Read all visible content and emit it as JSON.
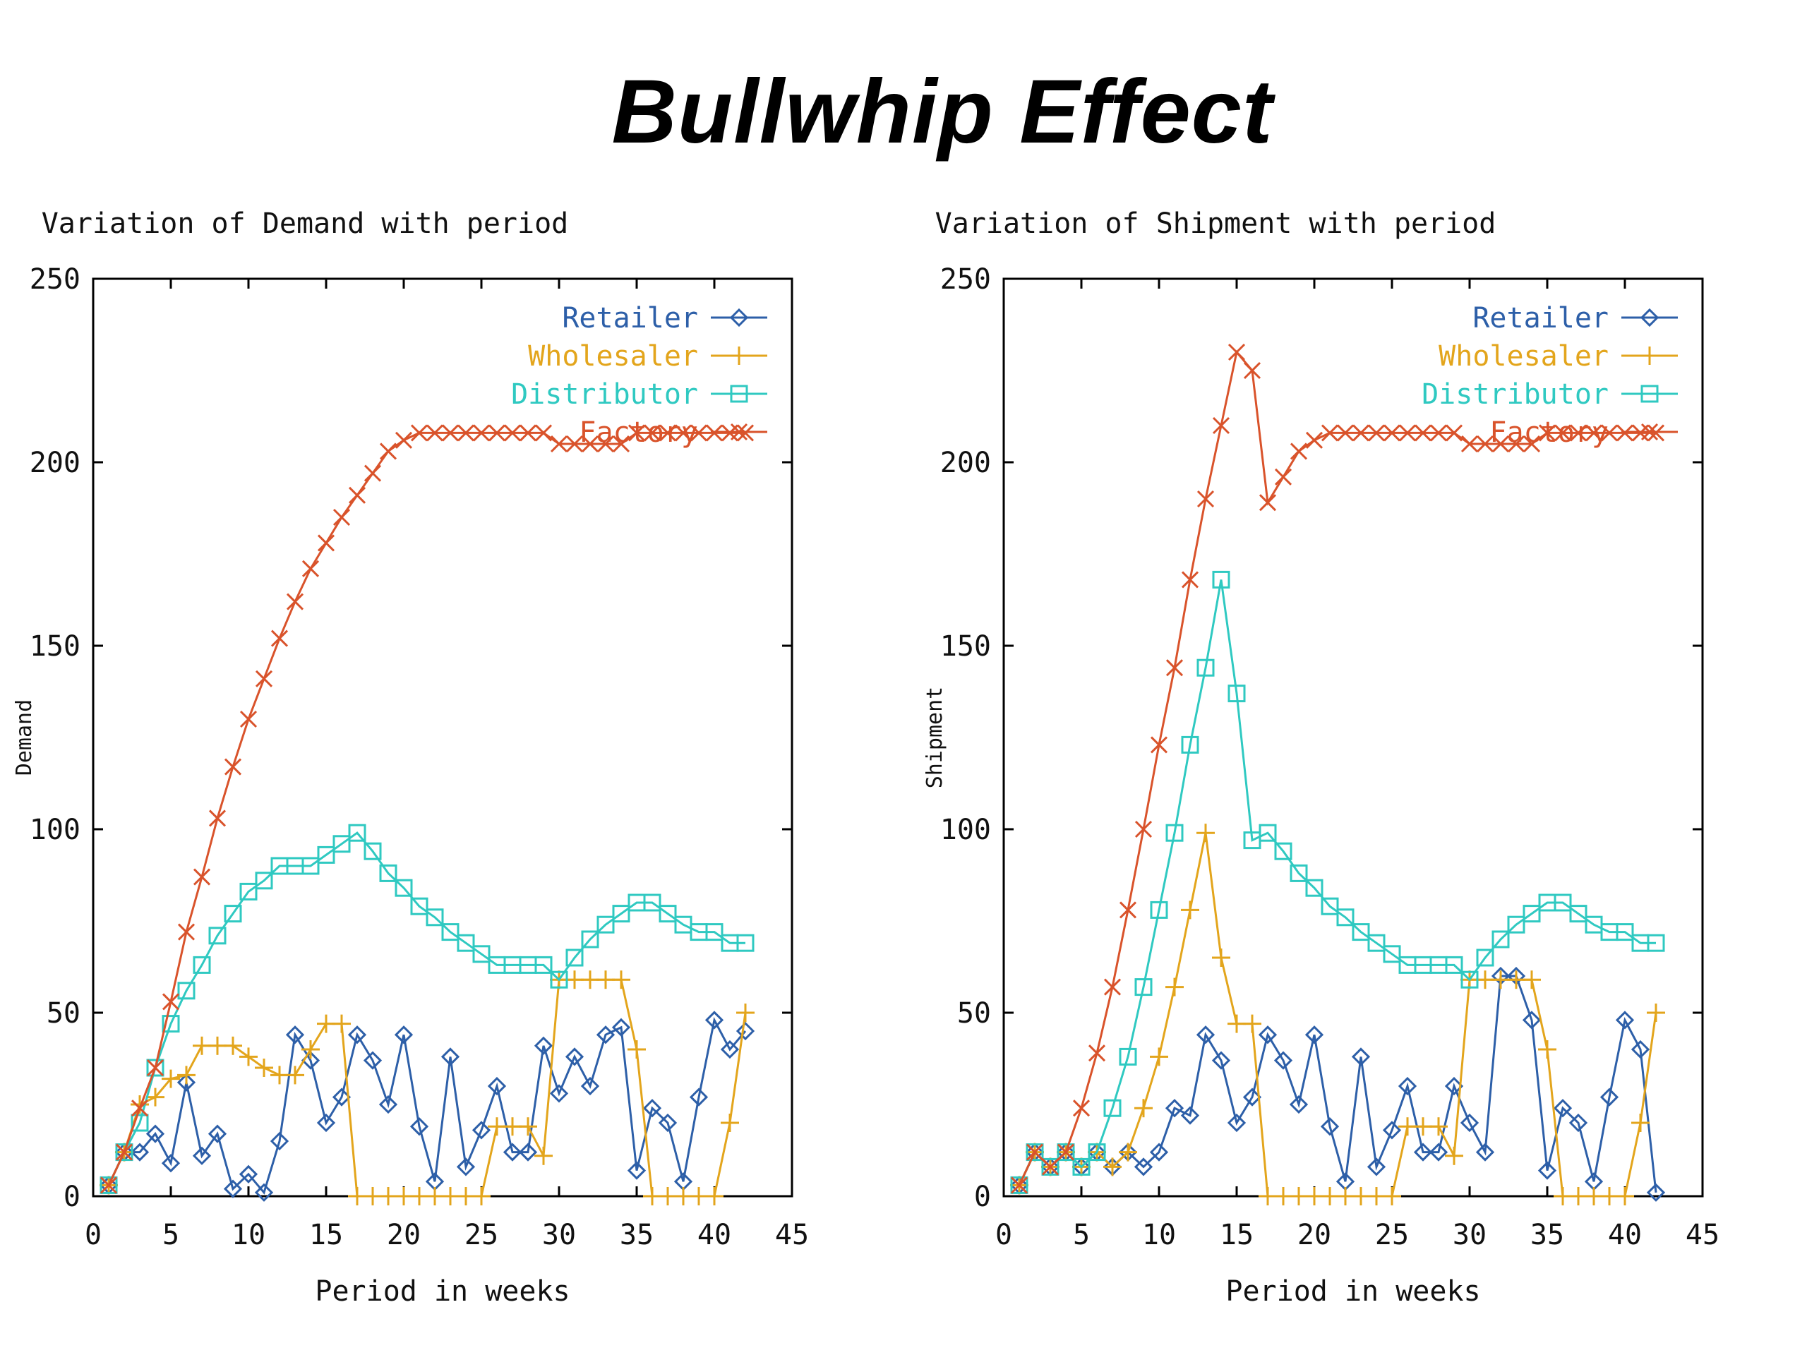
{
  "page_title": "Bullwhip Effect",
  "colors": {
    "Retailer": "#2d5fa8",
    "Wholesaler": "#e3a51c",
    "Distributor": "#2fc9c1",
    "Factory": "#d9532b"
  },
  "chart_data": [
    {
      "type": "line",
      "title": "Variation of Demand with period",
      "xlabel": "Period in weeks",
      "ylabel": "Demand",
      "xlim": [
        0,
        45
      ],
      "ylim": [
        0,
        250
      ],
      "xticks": [
        0,
        5,
        10,
        15,
        20,
        25,
        30,
        35,
        40,
        45
      ],
      "yticks": [
        0,
        50,
        100,
        150,
        200,
        250
      ],
      "legend_position": "top-right",
      "grid": false,
      "series": [
        {
          "name": "Retailer",
          "marker": "diamond",
          "x": [
            1,
            2,
            3,
            4,
            5,
            6,
            7,
            8,
            9,
            10,
            11,
            12,
            13,
            14,
            15,
            16,
            17,
            18,
            19,
            20,
            21,
            22,
            23,
            24,
            25,
            26,
            27,
            28,
            29,
            30,
            31,
            32,
            33,
            34,
            35,
            36,
            37,
            38,
            39,
            40,
            41,
            42
          ],
          "y": [
            3,
            12,
            12,
            17,
            9,
            31,
            11,
            17,
            2,
            6,
            1,
            15,
            44,
            37,
            20,
            27,
            44,
            37,
            25,
            44,
            19,
            4,
            38,
            8,
            18,
            30,
            12,
            12,
            41,
            28,
            38,
            30,
            44,
            46,
            7,
            24,
            20,
            4,
            27,
            48,
            40,
            45
          ]
        },
        {
          "name": "Wholesaler",
          "marker": "plus",
          "x": [
            1,
            2,
            3,
            4,
            5,
            6,
            7,
            8,
            9,
            10,
            11,
            12,
            13,
            14,
            15,
            16,
            17,
            18,
            19,
            20,
            21,
            22,
            23,
            24,
            25,
            26,
            27,
            28,
            29,
            30,
            31,
            32,
            33,
            34,
            35,
            36,
            37,
            38,
            39,
            40,
            41,
            42
          ],
          "y": [
            3,
            12,
            25,
            27,
            32,
            33,
            41,
            41,
            41,
            38,
            35,
            33,
            33,
            40,
            47,
            47,
            0,
            0,
            0,
            0,
            0,
            0,
            0,
            0,
            0,
            19,
            19,
            19,
            11,
            59,
            59,
            59,
            59,
            59,
            40,
            0,
            0,
            0,
            0,
            0,
            20,
            50
          ]
        },
        {
          "name": "Distributor",
          "marker": "square",
          "x": [
            1,
            2,
            3,
            4,
            5,
            6,
            7,
            8,
            9,
            10,
            11,
            12,
            13,
            14,
            15,
            16,
            17,
            18,
            19,
            20,
            21,
            22,
            23,
            24,
            25,
            26,
            27,
            28,
            29,
            30,
            31,
            32,
            33,
            34,
            35,
            36,
            37,
            38,
            39,
            40,
            41,
            42
          ],
          "y": [
            3,
            12,
            20,
            35,
            47,
            56,
            63,
            71,
            77,
            83,
            86,
            90,
            90,
            90,
            93,
            96,
            99,
            94,
            88,
            84,
            79,
            76,
            72,
            69,
            66,
            63,
            63,
            63,
            63,
            59,
            65,
            70,
            74,
            77,
            80,
            80,
            77,
            74,
            72,
            72,
            69,
            69
          ]
        },
        {
          "name": "Factory",
          "marker": "cross",
          "x": [
            1,
            2,
            3,
            4,
            5,
            6,
            7,
            8,
            9,
            10,
            11,
            12,
            13,
            14,
            15,
            16,
            17,
            18,
            19,
            20,
            21,
            22,
            23,
            24,
            25,
            26,
            27,
            28,
            29,
            30,
            31,
            32,
            33,
            34,
            35,
            36,
            37,
            38,
            39,
            40,
            41,
            42
          ],
          "y": [
            3,
            12,
            24,
            35,
            53,
            72,
            87,
            103,
            117,
            130,
            141,
            152,
            162,
            171,
            178,
            185,
            191,
            197,
            203,
            206,
            208,
            208,
            208,
            208,
            208,
            208,
            208,
            208,
            208,
            205,
            205,
            205,
            205,
            205,
            208,
            208,
            208,
            208,
            208,
            208,
            208,
            208
          ]
        }
      ]
    },
    {
      "type": "line",
      "title": "Variation of Shipment with period",
      "xlabel": "Period in weeks",
      "ylabel": "Shipment",
      "xlim": [
        0,
        45
      ],
      "ylim": [
        0,
        250
      ],
      "xticks": [
        0,
        5,
        10,
        15,
        20,
        25,
        30,
        35,
        40,
        45
      ],
      "yticks": [
        0,
        50,
        100,
        150,
        200,
        250
      ],
      "legend_position": "top-right",
      "grid": false,
      "series": [
        {
          "name": "Retailer",
          "marker": "diamond",
          "x": [
            1,
            2,
            3,
            4,
            5,
            6,
            7,
            8,
            9,
            10,
            11,
            12,
            13,
            14,
            15,
            16,
            17,
            18,
            19,
            20,
            21,
            22,
            23,
            24,
            25,
            26,
            27,
            28,
            29,
            30,
            31,
            32,
            33,
            34,
            35,
            36,
            37,
            38,
            39,
            40,
            41,
            42
          ],
          "y": [
            3,
            12,
            8,
            12,
            8,
            12,
            8,
            12,
            8,
            12,
            24,
            22,
            44,
            37,
            20,
            27,
            44,
            37,
            25,
            44,
            19,
            4,
            38,
            8,
            18,
            30,
            12,
            12,
            30,
            20,
            12,
            60,
            60,
            48,
            7,
            24,
            20,
            4,
            27,
            48,
            40,
            1
          ]
        },
        {
          "name": "Wholesaler",
          "marker": "plus",
          "x": [
            1,
            2,
            3,
            4,
            5,
            6,
            7,
            8,
            9,
            10,
            11,
            12,
            13,
            14,
            15,
            16,
            17,
            18,
            19,
            20,
            21,
            22,
            23,
            24,
            25,
            26,
            27,
            28,
            29,
            30,
            31,
            32,
            33,
            34,
            35,
            36,
            37,
            38,
            39,
            40,
            41,
            42
          ],
          "y": [
            3,
            12,
            8,
            12,
            8,
            12,
            8,
            12,
            24,
            38,
            57,
            78,
            99,
            65,
            47,
            47,
            0,
            0,
            0,
            0,
            0,
            0,
            0,
            0,
            0,
            19,
            19,
            19,
            11,
            59,
            59,
            59,
            59,
            59,
            40,
            0,
            0,
            0,
            0,
            0,
            20,
            50
          ]
        },
        {
          "name": "Distributor",
          "marker": "square",
          "x": [
            1,
            2,
            3,
            4,
            5,
            6,
            7,
            8,
            9,
            10,
            11,
            12,
            13,
            14,
            15,
            16,
            17,
            18,
            19,
            20,
            21,
            22,
            23,
            24,
            25,
            26,
            27,
            28,
            29,
            30,
            31,
            32,
            33,
            34,
            35,
            36,
            37,
            38,
            39,
            40,
            41,
            42
          ],
          "y": [
            3,
            12,
            8,
            12,
            8,
            12,
            24,
            38,
            57,
            78,
            99,
            123,
            144,
            168,
            137,
            97,
            99,
            94,
            88,
            84,
            79,
            76,
            72,
            69,
            66,
            63,
            63,
            63,
            63,
            59,
            65,
            70,
            74,
            77,
            80,
            80,
            77,
            74,
            72,
            72,
            69,
            69
          ]
        },
        {
          "name": "Factory",
          "marker": "cross",
          "x": [
            1,
            2,
            3,
            4,
            5,
            6,
            7,
            8,
            9,
            10,
            11,
            12,
            13,
            14,
            15,
            16,
            17,
            18,
            19,
            20,
            21,
            22,
            23,
            24,
            25,
            26,
            27,
            28,
            29,
            30,
            31,
            32,
            33,
            34,
            35,
            36,
            37,
            38,
            39,
            40,
            41,
            42
          ],
          "y": [
            3,
            12,
            8,
            12,
            24,
            39,
            57,
            78,
            100,
            123,
            144,
            168,
            190,
            210,
            230,
            225,
            189,
            196,
            203,
            206,
            208,
            208,
            208,
            208,
            208,
            208,
            208,
            208,
            208,
            205,
            205,
            205,
            205,
            205,
            208,
            208,
            208,
            208,
            208,
            208,
            208,
            208
          ]
        }
      ]
    }
  ]
}
